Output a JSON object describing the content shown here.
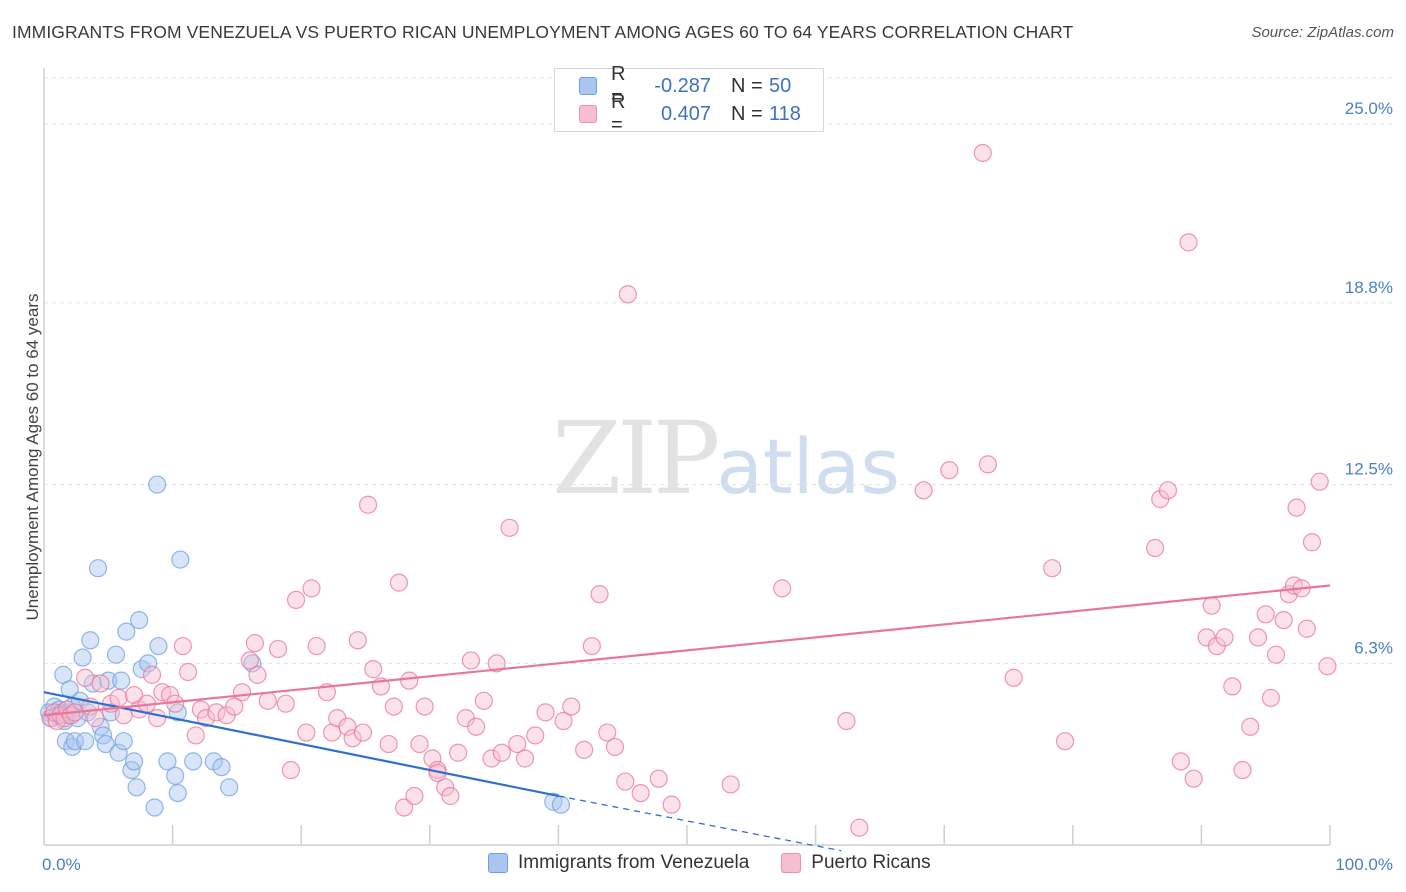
{
  "title": "IMMIGRANTS FROM VENEZUELA VS PUERTO RICAN UNEMPLOYMENT AMONG AGES 60 TO 64 YEARS CORRELATION CHART",
  "source": "Source: ZipAtlas.com",
  "watermark": {
    "zip": "ZIP",
    "atlas": "atlas"
  },
  "legend": {
    "r_label": "R =",
    "n_label": "N =",
    "series": [
      {
        "name": "Immigrants from Venezuela",
        "r": "-0.287",
        "n": "50",
        "fill": "#a9c6ef",
        "stroke": "#6f9fe0"
      },
      {
        "name": "Puerto Ricans",
        "r": "0.407",
        "n": "118",
        "fill": "#f6bfd0",
        "stroke": "#ee8fae"
      }
    ]
  },
  "chart_data": {
    "type": "scatter",
    "title": "IMMIGRANTS FROM VENEZUELA VS PUERTO RICAN UNEMPLOYMENT AMONG AGES 60 TO 64 YEARS CORRELATION CHART",
    "xlabel": "",
    "ylabel": "Unemployment Among Ages 60 to 64 years",
    "xlim": [
      0,
      100
    ],
    "ylim": [
      0,
      26.6
    ],
    "x_tick_labels": [
      {
        "value": 0,
        "label": "0.0%"
      },
      {
        "value": 100,
        "label": "100.0%"
      }
    ],
    "y_ticks": [
      {
        "value": 6.3,
        "label": "6.3%"
      },
      {
        "value": 12.5,
        "label": "12.5%"
      },
      {
        "value": 18.8,
        "label": "18.8%"
      },
      {
        "value": 25.0,
        "label": "25.0%"
      }
    ],
    "grid": "horizontal dashed",
    "series": [
      {
        "name": "Immigrants from Venezuela",
        "color": "#6f9fe0",
        "fill": "#a9c6ef",
        "trend": {
          "x0": 0,
          "y0": 5.3,
          "x1": 40,
          "y1": 1.7,
          "dash_to_x": 62,
          "dash_to_y": -0.2
        },
        "points": [
          [
            0.4,
            4.6
          ],
          [
            0.6,
            4.4
          ],
          [
            0.8,
            4.8
          ],
          [
            1.0,
            4.5
          ],
          [
            1.2,
            4.7
          ],
          [
            1.4,
            4.6
          ],
          [
            1.6,
            4.3
          ],
          [
            1.8,
            4.5
          ],
          [
            2.0,
            4.6
          ],
          [
            2.2,
            4.8
          ],
          [
            1.5,
            5.9
          ],
          [
            1.7,
            3.6
          ],
          [
            2.0,
            5.4
          ],
          [
            2.2,
            3.4
          ],
          [
            2.4,
            3.6
          ],
          [
            2.6,
            4.4
          ],
          [
            2.8,
            5.0
          ],
          [
            3.0,
            6.5
          ],
          [
            3.2,
            3.6
          ],
          [
            3.4,
            4.6
          ],
          [
            3.6,
            7.1
          ],
          [
            3.8,
            5.6
          ],
          [
            4.2,
            9.6
          ],
          [
            4.4,
            4.1
          ],
          [
            4.6,
            3.8
          ],
          [
            4.8,
            3.5
          ],
          [
            5.0,
            5.7
          ],
          [
            5.2,
            4.6
          ],
          [
            5.6,
            6.6
          ],
          [
            5.8,
            3.2
          ],
          [
            6.0,
            5.7
          ],
          [
            6.2,
            3.6
          ],
          [
            6.4,
            7.4
          ],
          [
            6.8,
            2.6
          ],
          [
            7.0,
            2.9
          ],
          [
            7.2,
            2.0
          ],
          [
            7.6,
            6.1
          ],
          [
            8.1,
            6.3
          ],
          [
            7.4,
            7.8
          ],
          [
            8.6,
            1.3
          ],
          [
            8.9,
            6.9
          ],
          [
            8.8,
            12.5
          ],
          [
            9.6,
            2.9
          ],
          [
            10.2,
            2.4
          ],
          [
            10.4,
            1.8
          ],
          [
            10.6,
            9.9
          ],
          [
            11.6,
            2.9
          ],
          [
            13.2,
            2.9
          ],
          [
            14.4,
            2.0
          ],
          [
            39.6,
            1.5
          ],
          [
            13.8,
            2.7
          ],
          [
            16.2,
            6.3
          ],
          [
            10.4,
            4.6
          ],
          [
            40.2,
            1.4
          ]
        ]
      },
      {
        "name": "Puerto Ricans",
        "color": "#e8759a",
        "fill": "#f6bfd0",
        "trend": {
          "x0": 0,
          "y0": 4.5,
          "x1": 100,
          "y1": 9.0
        },
        "points": [
          [
            0.5,
            4.4
          ],
          [
            0.8,
            4.6
          ],
          [
            1.0,
            4.3
          ],
          [
            1.3,
            4.5
          ],
          [
            1.6,
            4.4
          ],
          [
            1.8,
            4.7
          ],
          [
            2.1,
            4.5
          ],
          [
            2.4,
            4.6
          ],
          [
            3.2,
            5.8
          ],
          [
            3.6,
            4.8
          ],
          [
            4.0,
            4.4
          ],
          [
            4.4,
            5.6
          ],
          [
            5.2,
            4.9
          ],
          [
            5.8,
            5.1
          ],
          [
            6.2,
            4.5
          ],
          [
            7.0,
            5.2
          ],
          [
            7.4,
            4.7
          ],
          [
            8.0,
            4.9
          ],
          [
            8.4,
            5.9
          ],
          [
            8.8,
            4.4
          ],
          [
            9.2,
            5.3
          ],
          [
            9.8,
            5.2
          ],
          [
            10.2,
            4.9
          ],
          [
            10.8,
            6.9
          ],
          [
            11.2,
            6.0
          ],
          [
            11.8,
            3.8
          ],
          [
            12.2,
            4.7
          ],
          [
            12.6,
            4.4
          ],
          [
            13.4,
            4.6
          ],
          [
            14.2,
            4.5
          ],
          [
            14.8,
            4.8
          ],
          [
            15.4,
            5.3
          ],
          [
            16.0,
            6.4
          ],
          [
            16.6,
            5.9
          ],
          [
            16.4,
            7.0
          ],
          [
            17.4,
            5.0
          ],
          [
            18.2,
            6.8
          ],
          [
            18.8,
            4.9
          ],
          [
            19.2,
            2.6
          ],
          [
            19.6,
            8.5
          ],
          [
            20.4,
            3.9
          ],
          [
            20.8,
            8.9
          ],
          [
            21.2,
            6.9
          ],
          [
            22.0,
            5.3
          ],
          [
            22.4,
            3.9
          ],
          [
            22.8,
            4.4
          ],
          [
            23.6,
            4.1
          ],
          [
            24.0,
            3.7
          ],
          [
            24.4,
            7.1
          ],
          [
            24.8,
            3.9
          ],
          [
            25.2,
            11.8
          ],
          [
            25.6,
            6.1
          ],
          [
            26.2,
            5.5
          ],
          [
            26.8,
            3.5
          ],
          [
            27.2,
            4.8
          ],
          [
            27.6,
            9.1
          ],
          [
            28.0,
            1.3
          ],
          [
            28.4,
            5.7
          ],
          [
            28.8,
            1.7
          ],
          [
            29.2,
            3.5
          ],
          [
            29.6,
            4.8
          ],
          [
            30.2,
            3.0
          ],
          [
            30.6,
            2.6
          ],
          [
            31.2,
            2.0
          ],
          [
            31.6,
            1.7
          ],
          [
            32.2,
            3.2
          ],
          [
            32.8,
            4.4
          ],
          [
            33.2,
            6.4
          ],
          [
            33.6,
            4.1
          ],
          [
            34.2,
            5.0
          ],
          [
            34.8,
            3.0
          ],
          [
            35.2,
            6.3
          ],
          [
            35.6,
            3.2
          ],
          [
            36.2,
            11.0
          ],
          [
            36.8,
            3.5
          ],
          [
            37.4,
            3.0
          ],
          [
            38.2,
            3.8
          ],
          [
            39.0,
            4.6
          ],
          [
            40.4,
            4.3
          ],
          [
            41.0,
            4.8
          ],
          [
            42.0,
            3.3
          ],
          [
            42.6,
            6.9
          ],
          [
            43.2,
            8.7
          ],
          [
            43.8,
            3.9
          ],
          [
            44.4,
            3.4
          ],
          [
            45.2,
            2.2
          ],
          [
            46.4,
            1.8
          ],
          [
            47.8,
            2.3
          ],
          [
            48.8,
            1.4
          ],
          [
            53.4,
            2.1
          ],
          [
            57.4,
            8.9
          ],
          [
            62.4,
            4.3
          ],
          [
            63.4,
            0.6
          ],
          [
            68.4,
            12.3
          ],
          [
            70.4,
            13.0
          ],
          [
            73.4,
            13.2
          ],
          [
            75.4,
            5.8
          ],
          [
            78.4,
            9.6
          ],
          [
            79.4,
            3.6
          ],
          [
            86.4,
            10.3
          ],
          [
            86.8,
            12.0
          ],
          [
            87.4,
            12.3
          ],
          [
            88.4,
            2.9
          ],
          [
            89.4,
            2.3
          ],
          [
            90.4,
            7.2
          ],
          [
            90.8,
            8.3
          ],
          [
            91.2,
            6.9
          ],
          [
            91.8,
            7.2
          ],
          [
            92.4,
            5.5
          ],
          [
            93.2,
            2.6
          ],
          [
            93.8,
            4.1
          ],
          [
            94.4,
            7.2
          ],
          [
            95.0,
            8.0
          ],
          [
            95.4,
            5.1
          ],
          [
            95.8,
            6.6
          ],
          [
            96.4,
            7.8
          ],
          [
            96.8,
            8.7
          ],
          [
            97.2,
            9.0
          ],
          [
            97.4,
            11.7
          ],
          [
            97.8,
            8.9
          ],
          [
            98.2,
            7.5
          ],
          [
            99.2,
            12.6
          ],
          [
            98.6,
            10.5
          ],
          [
            45.4,
            19.1
          ],
          [
            73.0,
            24.0
          ],
          [
            89.0,
            20.9
          ],
          [
            99.8,
            6.2
          ],
          [
            30.6,
            2.5
          ]
        ]
      }
    ]
  }
}
